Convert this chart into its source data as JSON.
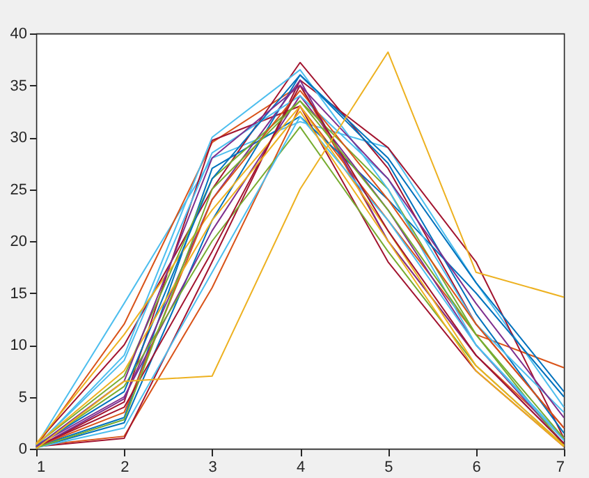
{
  "chart_data": {
    "type": "line",
    "x": [
      1,
      2,
      3,
      4,
      5,
      6,
      7
    ],
    "xlim": [
      1,
      7
    ],
    "xticks": [
      1,
      2,
      3,
      4,
      5,
      6,
      7
    ],
    "ylim": [
      0,
      40
    ],
    "yticks": [
      0,
      5,
      10,
      15,
      20,
      25,
      30,
      35,
      40
    ],
    "grid": false,
    "legend": false,
    "line_style": "solid",
    "marker": "none",
    "series": [
      {
        "color": "#4dbeee",
        "values": [
          0.3,
          14,
          28,
          31.5,
          29,
          16,
          4
        ]
      },
      {
        "color": "#d95319",
        "values": [
          0.2,
          12,
          29.5,
          35,
          20,
          9,
          1
        ]
      },
      {
        "color": "#a2142f",
        "values": [
          0.5,
          10,
          25,
          37.2,
          27,
          12,
          2
        ]
      },
      {
        "color": "#a2142f",
        "values": [
          0.1,
          4.5,
          29.7,
          33,
          18,
          7.5,
          0.2
        ]
      },
      {
        "color": "#d95319",
        "values": [
          0.3,
          1.2,
          15.5,
          33,
          22,
          11,
          7.8
        ]
      },
      {
        "color": "#a2142f",
        "values": [
          0.2,
          1,
          18,
          35.5,
          29,
          18,
          1
        ]
      },
      {
        "color": "#0072bd",
        "values": [
          0.1,
          2.5,
          22,
          36,
          27.5,
          13,
          1.5
        ]
      },
      {
        "color": "#0072bd",
        "values": [
          0.2,
          3,
          27,
          32,
          24,
          15,
          5
        ]
      },
      {
        "color": "#7e2f8e",
        "values": [
          0.3,
          5,
          21,
          34,
          23,
          10,
          0.5
        ]
      },
      {
        "color": "#7e2f8e",
        "values": [
          0.1,
          4.8,
          24,
          35.5,
          20,
          9,
          0.5
        ]
      },
      {
        "color": "#77ac30",
        "values": [
          0.4,
          7,
          26,
          33.5,
          25,
          11,
          0.3
        ]
      },
      {
        "color": "#77ac30",
        "values": [
          0.2,
          6,
          20,
          31,
          19,
          8,
          0.3
        ]
      },
      {
        "color": "#4dbeee",
        "values": [
          0.3,
          8.5,
          28.5,
          34,
          26,
          12,
          3.5
        ]
      },
      {
        "color": "#4dbeee",
        "values": [
          0.2,
          9,
          30,
          36.5,
          25,
          10,
          1
        ]
      },
      {
        "color": "#edb120",
        "values": [
          0.5,
          11,
          23,
          33,
          21,
          8,
          0.3
        ]
      },
      {
        "color": "#4dbeee",
        "values": [
          0.1,
          2,
          17,
          32,
          22,
          10,
          0.8
        ]
      },
      {
        "color": "#d95319",
        "values": [
          0.2,
          3.5,
          24,
          34.5,
          24,
          12,
          2
        ]
      },
      {
        "color": "#0072bd",
        "values": [
          0.3,
          5.5,
          26,
          36,
          28,
          16,
          5.5
        ]
      },
      {
        "color": "#a2142f",
        "values": [
          0.2,
          4,
          19,
          35,
          21,
          9,
          0.5
        ]
      },
      {
        "color": "#edb120",
        "values": [
          0.4,
          7.5,
          22,
          32.5,
          20,
          7.5,
          0.2
        ]
      },
      {
        "color": "#77ac30",
        "values": [
          0.1,
          2.8,
          25,
          33.5,
          23,
          11,
          1
        ]
      },
      {
        "color": "#7e2f8e",
        "values": [
          0.2,
          6.5,
          28,
          35,
          26,
          14,
          3
        ]
      },
      {
        "color": "#edb120",
        "values": [
          0,
          6.5,
          7,
          25,
          38.2,
          17,
          14.6
        ]
      }
    ]
  }
}
